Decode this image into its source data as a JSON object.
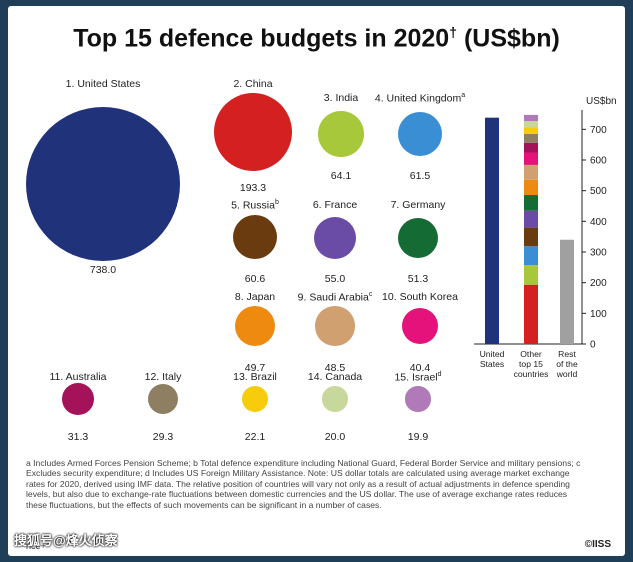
{
  "title": "Top 15 defence budgets in 2020",
  "title_marker": "†",
  "title_unit": " (US$bn)",
  "chart_data": [
    {
      "type": "bubble",
      "countries": [
        {
          "label": "1. United States",
          "note": "",
          "value": "738.0",
          "num": 738.0,
          "color": "#20337a"
        },
        {
          "label": "2. China",
          "note": "",
          "value": "193.3",
          "num": 193.3,
          "color": "#d42020"
        },
        {
          "label": "3. India",
          "note": "",
          "value": "64.1",
          "num": 64.1,
          "color": "#a8c83c"
        },
        {
          "label": "4. United Kingdom",
          "note": "a",
          "value": "61.5",
          "num": 61.5,
          "color": "#3a8ed4"
        },
        {
          "label": "5. Russia",
          "note": "b",
          "value": "60.6",
          "num": 60.6,
          "color": "#6b3b10"
        },
        {
          "label": "6. France",
          "note": "",
          "value": "55.0",
          "num": 55.0,
          "color": "#6a4ca6"
        },
        {
          "label": "7. Germany",
          "note": "",
          "value": "51.3",
          "num": 51.3,
          "color": "#146b34"
        },
        {
          "label": "8. Japan",
          "note": "",
          "value": "49.7",
          "num": 49.7,
          "color": "#ee8a10"
        },
        {
          "label": "9. Saudi Arabia",
          "note": "c",
          "value": "48.5",
          "num": 48.5,
          "color": "#d0a070"
        },
        {
          "label": "10. South Korea",
          "note": "",
          "value": "40.4",
          "num": 40.4,
          "color": "#e6127c"
        },
        {
          "label": "11. Australia",
          "note": "",
          "value": "31.3",
          "num": 31.3,
          "color": "#a4125a"
        },
        {
          "label": "12. Italy",
          "note": "",
          "value": "29.3",
          "num": 29.3,
          "color": "#8e7e62"
        },
        {
          "label": "13. Brazil",
          "note": "",
          "value": "22.1",
          "num": 22.1,
          "color": "#f6cc0c"
        },
        {
          "label": "14. Canada",
          "note": "",
          "value": "20.0",
          "num": 20.0,
          "color": "#c8d89c"
        },
        {
          "label": "15. Israel",
          "note": "d",
          "value": "19.9",
          "num": 19.9,
          "color": "#b07ab8"
        }
      ]
    },
    {
      "type": "bar",
      "ylabel": "US$bn",
      "ylim": [
        0,
        750
      ],
      "yticks": [
        0,
        100,
        200,
        300,
        400,
        500,
        600,
        700
      ],
      "categories": [
        "United States",
        "Other top 15 countries",
        "Rest of the world"
      ],
      "category_lines": [
        [
          "United",
          "States"
        ],
        [
          "Other",
          "top 15",
          "countries"
        ],
        [
          "Rest",
          "of the",
          "world"
        ]
      ],
      "series": [
        {
          "values": [
            738.0,
            746.9,
            340.0
          ]
        }
      ],
      "bar_colors": [
        "#20337a",
        "stacked",
        "#a0a0a0"
      ]
    }
  ],
  "footnote": "a Includes Armed Forces Pension Scheme; b Total defence expenditure including National Guard, Federal Border Service and military pensions; c Excludes security expenditure; d Includes US Foreign Military Assistance. Note: US dollar totals are calculated using average market exchange rates for 2020, derived using IMF data. The relative position of countries will vary not only as a result of actual adjustments in defence spending levels, but also due to exchange-rate fluctuations between domestic currencies and the US dollar. The use of average exchange rates reduces these fluctuations, but the effects of such movements can be significant in a number of cases.",
  "source": "nce+",
  "logo": "©IISS",
  "watermark": "搜狐号@烽火侦察"
}
